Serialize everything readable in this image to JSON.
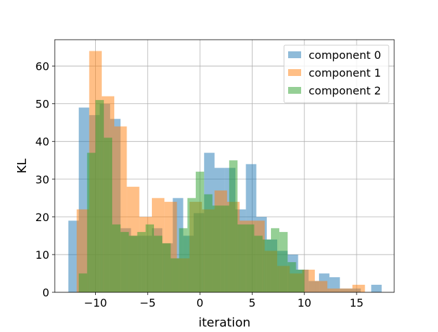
{
  "chart_data": {
    "type": "histogram",
    "title": "",
    "xlabel": "iteration",
    "ylabel": "KL",
    "xlim": [
      -13.9,
      18.6
    ],
    "ylim": [
      0,
      67
    ],
    "xticks": [
      -10,
      -5,
      0,
      5,
      10,
      15
    ],
    "yticks": [
      0,
      10,
      20,
      30,
      40,
      50,
      60
    ],
    "xtick_labels": [
      "−10",
      "−5",
      "0",
      "5",
      "10",
      "15"
    ],
    "ytick_labels": [
      "0",
      "10",
      "20",
      "30",
      "40",
      "50",
      "60"
    ],
    "grid": true,
    "legend_position": "top-right",
    "series": [
      {
        "name": "component 0",
        "color": "#1f77b4",
        "alpha": 0.5,
        "bin_edges": [
          -12.6,
          -11.6,
          -10.6,
          -9.6,
          -8.6,
          -7.6,
          -6.6,
          -5.6,
          -4.6,
          -3.6,
          -2.6,
          -1.6,
          -0.6,
          0.4,
          1.4,
          2.4,
          3.4,
          4.4,
          5.4,
          6.4,
          7.4,
          8.4,
          9.4,
          10.4,
          11.4,
          12.4,
          13.4,
          14.4,
          15.4,
          16.4,
          17.4
        ],
        "counts": [
          19,
          49,
          47,
          50,
          46,
          17,
          15,
          15,
          17,
          13,
          25,
          15,
          21,
          37,
          33,
          33,
          22,
          34,
          20,
          14,
          11,
          10,
          6,
          3,
          5,
          4,
          1,
          1,
          0,
          2
        ]
      },
      {
        "name": "component 1",
        "color": "#ff7f0e",
        "alpha": 0.5,
        "bin_edges": [
          -11.8,
          -10.6,
          -9.4,
          -8.2,
          -7.0,
          -5.8,
          -4.6,
          -3.4,
          -2.2,
          -1.0,
          0.2,
          1.4,
          2.6,
          3.8,
          5.0,
          6.2,
          7.4,
          8.6,
          9.8,
          11.0,
          12.2,
          13.4,
          14.6,
          15.8
        ],
        "counts": [
          22,
          64,
          52,
          44,
          28,
          20,
          25,
          24,
          9,
          24,
          22,
          27,
          24,
          19,
          19,
          11,
          7,
          5,
          6,
          3,
          1,
          1,
          2
        ]
      },
      {
        "name": "component 2",
        "color": "#2ca02c",
        "alpha": 0.5,
        "bin_edges": [
          -11.6,
          -10.8,
          -10.0,
          -9.2,
          -8.4,
          -7.6,
          -6.8,
          -6.0,
          -5.2,
          -4.4,
          -3.6,
          -2.8,
          -2.0,
          -1.2,
          -0.4,
          0.4,
          1.2,
          2.0,
          2.8,
          3.6,
          4.4,
          5.2,
          6.0,
          6.8,
          7.6,
          8.4,
          9.2,
          10.0
        ],
        "counts": [
          5,
          37,
          51,
          41,
          18,
          16,
          15,
          16,
          18,
          15,
          13,
          9,
          17,
          25,
          32,
          26,
          23,
          23,
          35,
          18,
          18,
          15,
          14,
          17,
          16,
          8,
          6
        ]
      }
    ]
  }
}
